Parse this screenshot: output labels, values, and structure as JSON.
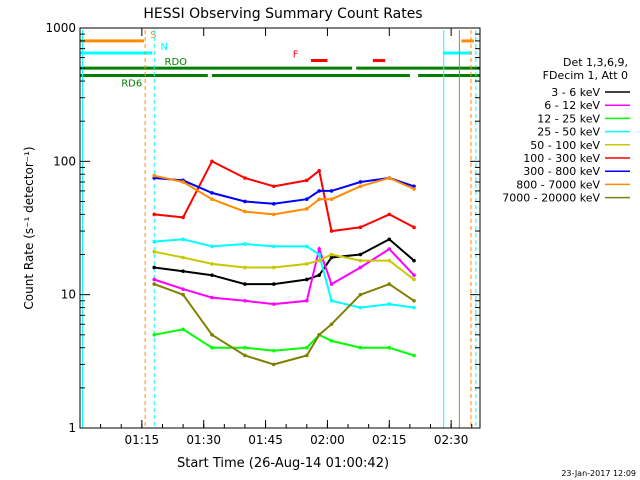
{
  "chart_data": {
    "type": "line",
    "title": "HESSI Observing Summary Count Rates",
    "xlabel": "Start Time (26-Aug-14 01:00:42)",
    "ylabel": "Count Rate (s⁻¹ detector⁻¹)",
    "yscale": "log",
    "ylim": [
      1,
      1000
    ],
    "xlim": [
      "01:00",
      "02:37"
    ],
    "x_ticks": [
      "01:15",
      "01:30",
      "01:45",
      "02:00",
      "02:15",
      "02:30"
    ],
    "y_ticks": [
      "1",
      "10",
      "100",
      "1000"
    ],
    "grid": false,
    "legend_position": "right",
    "legend_header": [
      "Det 1,3,6,9,",
      "FDecim 1, Att 0"
    ],
    "footer_date": "23-Jan-2017 12:09",
    "x": [
      "01:18",
      "01:25",
      "01:32",
      "01:40",
      "01:47",
      "01:55",
      "01:58",
      "02:01",
      "02:08",
      "02:15",
      "02:21"
    ],
    "series": [
      {
        "name": "3 - 6 keV",
        "color": "#000000",
        "values": [
          16,
          15,
          14,
          12,
          12,
          13,
          14,
          19,
          20,
          26,
          18
        ]
      },
      {
        "name": "6 - 12 keV",
        "color": "#ff00ff",
        "values": [
          13,
          11,
          9.5,
          9,
          8.5,
          9,
          22,
          12,
          16,
          22,
          14
        ]
      },
      {
        "name": "12 - 25 keV",
        "color": "#00ff00",
        "values": [
          5,
          5.5,
          4,
          4,
          3.8,
          4,
          5,
          4.5,
          4,
          4,
          3.5
        ]
      },
      {
        "name": "25 - 50 keV",
        "color": "#00ffff",
        "values": [
          25,
          26,
          23,
          24,
          23,
          23,
          20,
          9,
          8,
          8.5,
          8
        ]
      },
      {
        "name": "50 - 100 keV",
        "color": "#c8c800",
        "values": [
          21,
          19,
          17,
          16,
          16,
          17,
          18,
          20,
          18,
          18,
          13
        ]
      },
      {
        "name": "100 - 300 keV",
        "color": "#ff0000",
        "values": [
          40,
          38,
          100,
          75,
          65,
          72,
          85,
          30,
          32,
          40,
          32
        ]
      },
      {
        "name": "300 - 800 keV",
        "color": "#0000ff",
        "values": [
          75,
          72,
          58,
          50,
          48,
          52,
          60,
          60,
          70,
          75,
          65
        ]
      },
      {
        "name": "800 - 7000 keV",
        "color": "#ff8c00",
        "values": [
          78,
          70,
          52,
          42,
          40,
          44,
          52,
          52,
          65,
          75,
          62
        ]
      },
      {
        "name": "7000 - 20000 keV",
        "color": "#808000",
        "values": [
          12,
          10,
          5,
          3.5,
          3,
          3.5,
          5,
          6,
          10,
          12,
          9
        ]
      }
    ],
    "flag_bars": [
      {
        "label": "S",
        "color": "#ff8c00",
        "y_value": 800
      },
      {
        "label": "N",
        "color": "#00ffff",
        "y_value": 650
      },
      {
        "label": "F",
        "color": "#ff0000",
        "y_value": 570
      },
      {
        "label": "RDO",
        "color": "#008000",
        "y_value": 500
      },
      {
        "label": "RD6",
        "color": "#008000",
        "y_value": 440
      }
    ]
  }
}
